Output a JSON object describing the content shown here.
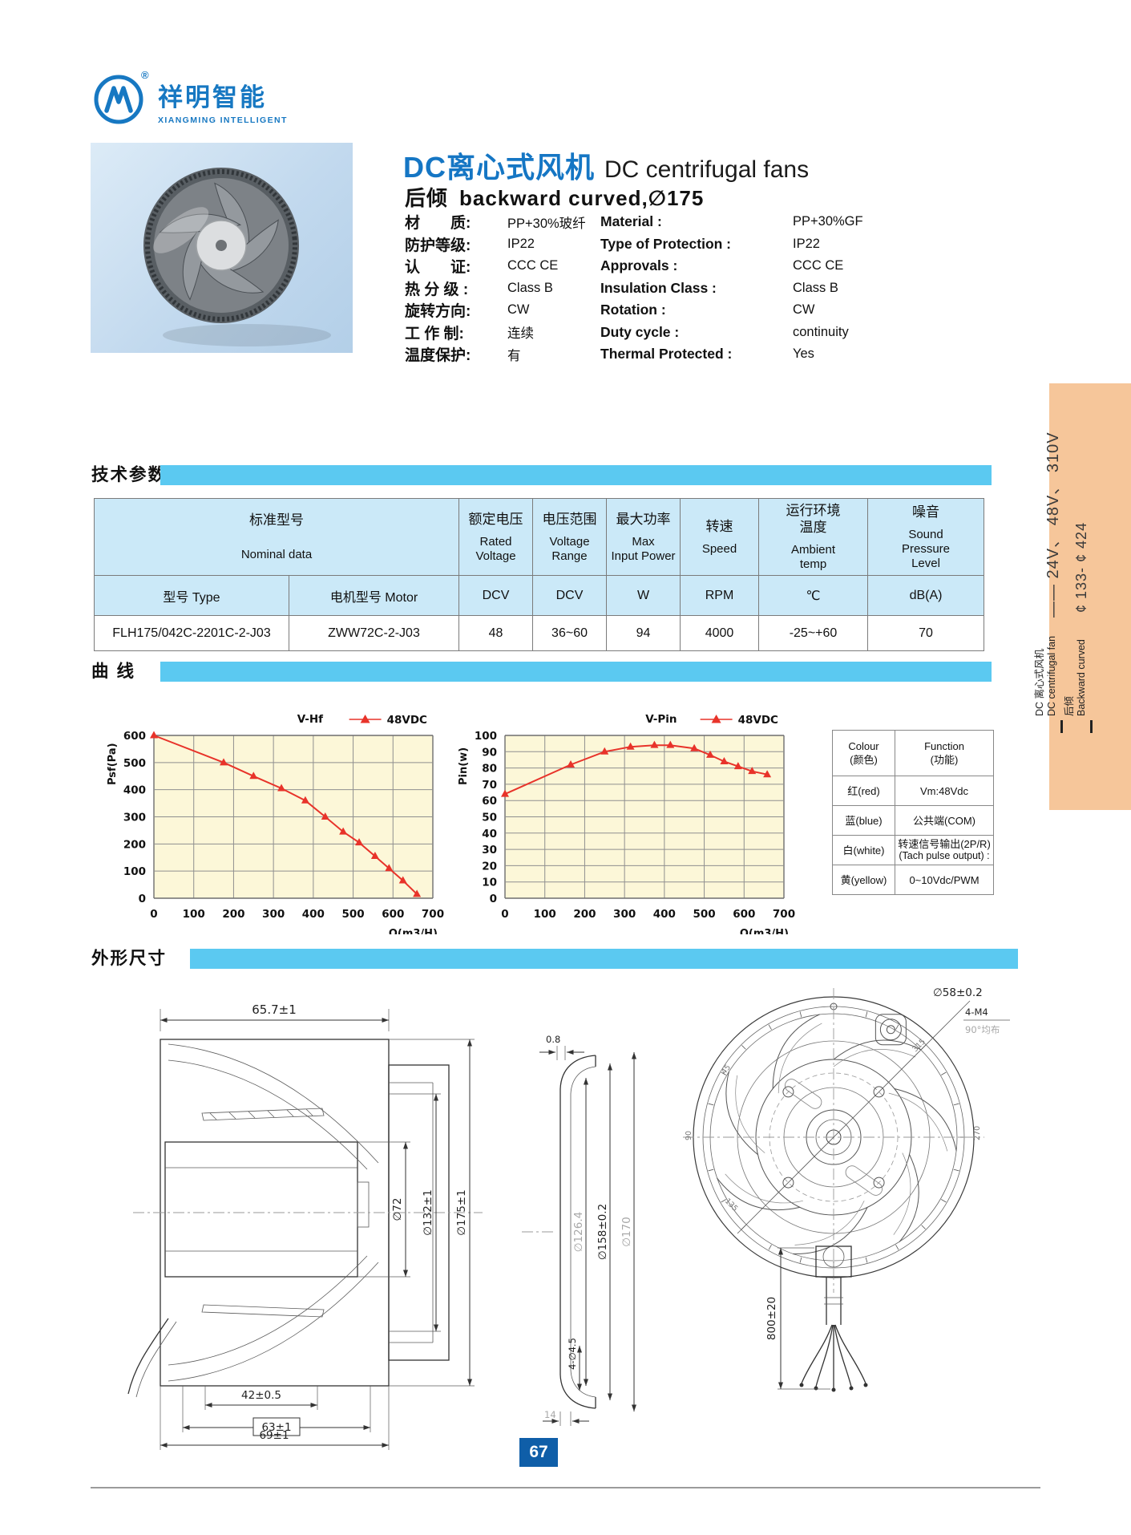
{
  "colors": {
    "brand_blue": "#1778c2",
    "title_blue": "#1576c4",
    "band_cyan": "#5bc9f1",
    "table_header_blue": "#cbe9f8",
    "chart_bg": "#fcf7d8",
    "line_red": "#e8332a",
    "sidebar_orange": "#f6c69a",
    "page_box_blue": "#0f5ea8"
  },
  "brand": {
    "name_zh": "祥明智能",
    "name_en": "XIANGMING INTELLIGENT",
    "registered": "®"
  },
  "header": {
    "title_zh": "DC离心式风机",
    "title_en": "DC centrifugal fans",
    "subtitle_zh": "后倾",
    "subtitle_en": "backward curved,∅175"
  },
  "product": {
    "specs": [
      {
        "zh_label": "材　　质:",
        "zh_value": "PP+30%玻纤",
        "en_label": "Material :",
        "en_value": "PP+30%GF"
      },
      {
        "zh_label": "防护等级:",
        "zh_value": "IP22",
        "en_label": "Type of Protection :",
        "en_value": "IP22"
      },
      {
        "zh_label": "认　　证:",
        "zh_value": "CCC  CE",
        "en_label": "Approvals :",
        "en_value": "CCC  CE"
      },
      {
        "zh_label": "热 分 级 :",
        "zh_value": "Class B",
        "en_label": "Insulation Class :",
        "en_value": "Class B"
      },
      {
        "zh_label": "旋转方向:",
        "zh_value": "CW",
        "en_label": "Rotation :",
        "en_value": "CW"
      },
      {
        "zh_label": "工 作 制:",
        "zh_value": "连续",
        "en_label": "Duty cycle :",
        "en_value": "continuity"
      },
      {
        "zh_label": "温度保护:",
        "zh_value": "有",
        "en_label": "Thermal Protected :",
        "en_value": "Yes"
      }
    ]
  },
  "sections": {
    "tech": "技术参数",
    "curve": "曲  线",
    "dims": "外形尺寸"
  },
  "technical_table": {
    "group_zh": "标准型号",
    "group_en": "Nominal  data",
    "columns": [
      {
        "zh": "额定电压",
        "en": "Rated\nVoltage",
        "unit": "DCV"
      },
      {
        "zh": "电压范围",
        "en": "Voltage\nRange",
        "unit": "DCV"
      },
      {
        "zh": "最大功率",
        "en": "Max\nInput Power",
        "unit": "W"
      },
      {
        "zh": "转速",
        "en": "Speed",
        "unit": "RPM"
      },
      {
        "zh": "运行环境\n温度",
        "en": "Ambient\ntemp",
        "unit": "℃"
      },
      {
        "zh": "噪音",
        "en": "Sound\nPressure\nLevel",
        "unit": "dB(A)"
      }
    ],
    "sub_type": "型号  Type",
    "sub_motor": "电机型号  Motor",
    "row": {
      "type": "FLH175/042C-2201C-2-J03",
      "motor": "ZWW72C-2-J03",
      "rated_voltage": "48",
      "voltage_range": "36~60",
      "max_power": "94",
      "speed": "4000",
      "ambient": "-25~+60",
      "noise": "70"
    }
  },
  "chart_data": [
    {
      "type": "line",
      "title": "V-Hf",
      "legend": "48VDC",
      "xlabel": "Q(m3/H)",
      "ylabel": "Psf(Pa)",
      "xlim": [
        0,
        700
      ],
      "ylim": [
        0,
        600
      ],
      "xtick_step": 100,
      "ytick_step": 100,
      "grid": true,
      "legend_position": "top-right",
      "line_color": "#e8332a",
      "x": [
        0,
        175,
        250,
        320,
        380,
        430,
        475,
        515,
        555,
        590,
        625,
        660
      ],
      "y": [
        600,
        500,
        450,
        405,
        360,
        300,
        245,
        205,
        155,
        110,
        65,
        15
      ]
    },
    {
      "type": "line",
      "title": "V-Pin",
      "legend": "48VDC",
      "xlabel": "Q(m3/H)",
      "ylabel": "Pin(w)",
      "xlim": [
        0,
        700
      ],
      "ylim": [
        0,
        100
      ],
      "xtick_step": 100,
      "ytick_step": 10,
      "grid": true,
      "legend_position": "top-right",
      "line_color": "#e8332a",
      "x": [
        0,
        165,
        250,
        315,
        375,
        415,
        475,
        515,
        550,
        585,
        620,
        658
      ],
      "y": [
        64,
        82,
        90,
        93,
        94,
        94,
        92,
        88,
        84,
        81,
        78,
        76
      ]
    }
  ],
  "wire_table": {
    "header": {
      "col1_line1": "Colour",
      "col1_line2": "(颜色)",
      "col2_line1": "Function",
      "col2_line2": "(功能)"
    },
    "rows": [
      {
        "colour": "红(red)",
        "fn1": "Vm:48Vdc",
        "fn2": ""
      },
      {
        "colour": "蓝(blue)",
        "fn1": "公共端(COM)",
        "fn2": ""
      },
      {
        "colour": "白(white)",
        "fn1": "转速信号输出(2P/R)",
        "fn2": "(Tach pulse output) :"
      },
      {
        "colour": "黄(yellow)",
        "fn1": "0~10Vdc/PWM",
        "fn2": ""
      }
    ]
  },
  "dimensions": {
    "labels": {
      "top_width": "65.7±1",
      "motor_dia": "∅72",
      "mid_dia": "∅132±1",
      "outer_dia": "∅175±1",
      "base_width": "42±0.5",
      "boxed_width": "63±1",
      "total_width": "69±1",
      "lip": "0.8",
      "inner_dia": "∅126.4",
      "bolt_circle_dia": "∅158±0.2",
      "flange_dia": "∅170",
      "holes": "4-∅4.5",
      "flange_depth": "14",
      "hub_dia": "∅58±0.2",
      "mount_holes": "4-M4",
      "mount_note": "90°均布",
      "wire_length": "800±20",
      "a45": "45",
      "a90": "90",
      "a135": "135",
      "a270": "270",
      "a315": "315"
    }
  },
  "sidebar": {
    "voltages": "—— 24V、 48V、 310V",
    "sizes": "¢ 133- ¢ 424",
    "family_zh": "DC 离心式风机",
    "family_en": "DC centrifugal fan",
    "type_zh": "后倾",
    "type_en": "Backward curved"
  },
  "page_number": "67"
}
